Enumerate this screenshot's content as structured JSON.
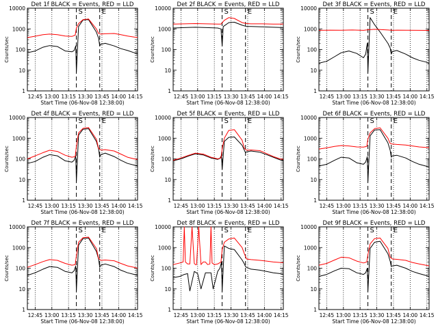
{
  "figure": {
    "xlabel": "Start Time (06-Nov-08 12:38:00)",
    "ylabel": "Counts/sec",
    "xticks": [
      "12:45",
      "13:00",
      "13:15",
      "13:30",
      "13:45",
      "14:00",
      "14:15"
    ],
    "yticks": [
      "1",
      "10",
      "100",
      "1000",
      "10000"
    ],
    "marker_start": "S",
    "marker_end": "E",
    "colors": {
      "events": "#000000",
      "lld": "#ff0000",
      "axes": "#000000",
      "background": "#ffffff"
    }
  },
  "chart_data": [
    {
      "type": "line",
      "title": "Det 1f BLACK = Events, RED = LLD",
      "xlabel": "Start Time (06-Nov-08 12:38:00)",
      "ylabel": "Counts/sec",
      "x_unit": "minutes after 12:38:00",
      "xlim": [
        0,
        99
      ],
      "ylim": [
        1,
        10000
      ],
      "yscale": "log",
      "markers": {
        "S": 44,
        "E": 65
      },
      "series": [
        {
          "color": "#000000",
          "x": [
            0,
            7,
            14,
            20,
            27,
            34,
            40,
            42,
            43.5,
            44,
            46,
            50,
            55,
            62,
            64,
            65,
            66,
            70,
            78,
            84,
            90,
            96,
            99
          ],
          "values": [
            70,
            85,
            130,
            155,
            140,
            85,
            78,
            90,
            150,
            8,
            1300,
            2700,
            2800,
            700,
            350,
            150,
            180,
            200,
            150,
            110,
            90,
            70,
            65
          ]
        },
        {
          "color": "#ff0000",
          "x": [
            0,
            7,
            14,
            20,
            27,
            34,
            40,
            43,
            44,
            46,
            50,
            55,
            62,
            64,
            66,
            70,
            78,
            84,
            90,
            96,
            99
          ],
          "values": [
            380,
            440,
            520,
            560,
            520,
            450,
            430,
            500,
            1100,
            1800,
            2800,
            3000,
            1000,
            600,
            560,
            580,
            600,
            520,
            450,
            400,
            390
          ]
        }
      ]
    },
    {
      "type": "line",
      "title": "Det 2f BLACK = Events, RED = LLD",
      "xlabel": "Start Time (06-Nov-08 12:38:00)",
      "ylabel": "Counts/sec",
      "x_unit": "minutes after 12:38:00",
      "xlim": [
        0,
        99
      ],
      "ylim": [
        1,
        10000
      ],
      "yscale": "log",
      "markers": {
        "S": 44,
        "E": 65
      },
      "series": [
        {
          "color": "#000000",
          "x": [
            0,
            10,
            20,
            30,
            40,
            43,
            44,
            45,
            50,
            55,
            62,
            66,
            70,
            80,
            90,
            99
          ],
          "values": [
            1100,
            1150,
            1200,
            1150,
            1100,
            1000,
            150,
            1300,
            2000,
            2100,
            1500,
            1300,
            1300,
            1250,
            1200,
            1150
          ]
        },
        {
          "color": "#ff0000",
          "x": [
            0,
            10,
            20,
            30,
            40,
            43,
            46,
            50,
            55,
            62,
            66,
            70,
            80,
            90,
            99
          ],
          "values": [
            1700,
            1750,
            1800,
            1750,
            1700,
            1700,
            2600,
            3500,
            3200,
            2000,
            1800,
            1750,
            1750,
            1700,
            1700
          ]
        }
      ]
    },
    {
      "type": "line",
      "title": "Det 3f BLACK = Events, RED = LLD",
      "xlabel": "Start Time (06-Nov-08 12:38:00)",
      "ylabel": "Counts/sec",
      "x_unit": "minutes after 12:38:00",
      "xlim": [
        0,
        99
      ],
      "ylim": [
        1,
        10000
      ],
      "yscale": "log",
      "markers": {
        "S": 44,
        "E": 65
      },
      "series": [
        {
          "color": "#000000",
          "x": [
            0,
            7,
            14,
            20,
            27,
            34,
            40,
            42,
            43.5,
            44,
            46,
            50,
            55,
            62,
            64,
            65,
            66,
            70,
            78,
            84,
            90,
            96,
            99
          ],
          "values": [
            22,
            27,
            45,
            70,
            85,
            65,
            40,
            60,
            200,
            8,
            3500,
            1600,
            700,
            200,
            120,
            60,
            80,
            90,
            60,
            40,
            30,
            25,
            22
          ]
        },
        {
          "color": "#ff0000",
          "x": [
            0,
            10,
            20,
            30,
            40,
            44,
            50,
            55,
            62,
            66,
            70,
            80,
            90,
            99
          ],
          "values": [
            850,
            870,
            860,
            880,
            850,
            900,
            950,
            920,
            880,
            850,
            870,
            860,
            850,
            840
          ]
        }
      ]
    },
    {
      "type": "line",
      "title": "Det 4f BLACK = Events, RED = LLD",
      "xlabel": "Start Time (06-Nov-08 12:38:00)",
      "ylabel": "Counts/sec",
      "x_unit": "minutes after 12:38:00",
      "xlim": [
        0,
        99
      ],
      "ylim": [
        1,
        10000
      ],
      "yscale": "log",
      "markers": {
        "S": 44,
        "E": 65
      },
      "series": [
        {
          "color": "#000000",
          "x": [
            0,
            7,
            14,
            20,
            27,
            34,
            40,
            42,
            43.5,
            44,
            46,
            50,
            55,
            62,
            64,
            65,
            66,
            70,
            78,
            84,
            90,
            96,
            99
          ],
          "values": [
            60,
            75,
            120,
            160,
            140,
            80,
            70,
            85,
            140,
            8,
            1400,
            2700,
            2900,
            700,
            300,
            120,
            160,
            190,
            130,
            85,
            60,
            50,
            45
          ]
        },
        {
          "color": "#ff0000",
          "x": [
            0,
            7,
            14,
            20,
            27,
            34,
            40,
            43,
            44,
            46,
            50,
            55,
            62,
            64,
            66,
            70,
            78,
            84,
            90,
            96,
            99
          ],
          "values": [
            100,
            140,
            200,
            260,
            230,
            150,
            120,
            130,
            400,
            1800,
            3000,
            3300,
            900,
            320,
            270,
            280,
            240,
            170,
            120,
            100,
            95
          ]
        }
      ]
    },
    {
      "type": "line",
      "title": "Det 5f BLACK = Events, RED = LLD",
      "xlabel": "Start Time (06-Nov-08 12:38:00)",
      "ylabel": "Counts/sec",
      "x_unit": "minutes after 12:38:00",
      "xlim": [
        0,
        99
      ],
      "ylim": [
        1,
        10000
      ],
      "yscale": "log",
      "markers": {
        "S": 44,
        "E": 65
      },
      "series": [
        {
          "color": "#000000",
          "x": [
            0,
            7,
            14,
            20,
            27,
            34,
            40,
            42,
            43.5,
            44,
            46,
            50,
            55,
            62,
            64,
            65,
            66,
            70,
            78,
            84,
            90,
            96,
            99
          ],
          "values": [
            80,
            100,
            140,
            175,
            155,
            110,
            95,
            105,
            150,
            30,
            700,
            1100,
            1150,
            450,
            260,
            200,
            220,
            240,
            210,
            160,
            120,
            90,
            85
          ]
        },
        {
          "color": "#ff0000",
          "x": [
            0,
            7,
            14,
            20,
            27,
            34,
            40,
            43,
            44,
            46,
            50,
            55,
            62,
            64,
            66,
            70,
            78,
            84,
            90,
            96,
            99
          ],
          "values": [
            85,
            110,
            150,
            190,
            170,
            120,
            100,
            110,
            300,
            1000,
            2400,
            2600,
            800,
            320,
            260,
            270,
            250,
            180,
            130,
            100,
            95
          ]
        }
      ]
    },
    {
      "type": "line",
      "title": "Det 6f BLACK = Events, RED = LLD",
      "xlabel": "Start Time (06-Nov-08 12:38:00)",
      "ylabel": "Counts/sec",
      "x_unit": "minutes after 12:38:00",
      "xlim": [
        0,
        99
      ],
      "ylim": [
        1,
        10000
      ],
      "yscale": "log",
      "markers": {
        "S": 44,
        "E": 65
      },
      "series": [
        {
          "color": "#000000",
          "x": [
            0,
            7,
            14,
            20,
            27,
            34,
            40,
            42,
            43.5,
            44,
            46,
            50,
            55,
            62,
            64,
            65,
            66,
            70,
            78,
            84,
            90,
            96,
            99
          ],
          "values": [
            45,
            55,
            85,
            120,
            110,
            65,
            55,
            70,
            130,
            8,
            1300,
            2500,
            2600,
            600,
            260,
            120,
            140,
            150,
            110,
            75,
            55,
            45,
            40
          ]
        },
        {
          "color": "#ff0000",
          "x": [
            0,
            7,
            14,
            20,
            27,
            34,
            40,
            43,
            44,
            46,
            50,
            55,
            62,
            64,
            66,
            70,
            78,
            84,
            90,
            96,
            99
          ],
          "values": [
            300,
            340,
            400,
            440,
            420,
            380,
            370,
            400,
            900,
            1800,
            2900,
            3200,
            1000,
            560,
            520,
            500,
            470,
            420,
            380,
            360,
            350
          ]
        }
      ]
    },
    {
      "type": "line",
      "title": "Det 7f BLACK = Events, RED = LLD",
      "xlabel": "Start Time (06-Nov-08 12:38:00)",
      "ylabel": "Counts/sec",
      "x_unit": "minutes after 12:38:00",
      "xlim": [
        0,
        99
      ],
      "ylim": [
        1,
        10000
      ],
      "yscale": "log",
      "markers": {
        "S": 44,
        "E": 65
      },
      "series": [
        {
          "color": "#000000",
          "x": [
            0,
            7,
            14,
            20,
            27,
            34,
            40,
            42,
            43.5,
            44,
            46,
            50,
            55,
            62,
            64,
            65,
            66,
            70,
            78,
            84,
            90,
            96,
            99
          ],
          "values": [
            45,
            60,
            90,
            120,
            110,
            70,
            60,
            75,
            130,
            8,
            1300,
            2700,
            2900,
            650,
            280,
            110,
            140,
            160,
            120,
            80,
            60,
            50,
            45
          ]
        },
        {
          "color": "#ff0000",
          "x": [
            0,
            7,
            14,
            20,
            27,
            34,
            40,
            43,
            44,
            46,
            50,
            55,
            62,
            64,
            66,
            70,
            78,
            84,
            90,
            96,
            99
          ],
          "values": [
            110,
            150,
            210,
            260,
            240,
            170,
            140,
            150,
            400,
            1800,
            3000,
            3200,
            900,
            300,
            240,
            250,
            230,
            170,
            130,
            110,
            100
          ]
        }
      ]
    },
    {
      "type": "line",
      "title": "Det 8f BLACK = Events, RED = LLD",
      "xlabel": "Start Time (06-Nov-08 12:38:00)",
      "ylabel": "Counts/sec",
      "x_unit": "minutes after 12:38:00",
      "xlim": [
        0,
        99
      ],
      "ylim": [
        1,
        10000
      ],
      "yscale": "log",
      "markers": {
        "S": 44,
        "E": 65
      },
      "series": [
        {
          "color": "#000000",
          "x": [
            0,
            6,
            10,
            13,
            15,
            19,
            22,
            25,
            29,
            34,
            36,
            40,
            42,
            43.5,
            44,
            46,
            50,
            55,
            62,
            64,
            65,
            66,
            70,
            78,
            84,
            90,
            96,
            99
          ],
          "values": [
            35,
            40,
            50,
            55,
            8,
            70,
            55,
            10,
            60,
            60,
            10,
            70,
            100,
            200,
            8,
            1200,
            900,
            800,
            250,
            160,
            120,
            110,
            90,
            80,
            70,
            60,
            55,
            50
          ]
        },
        {
          "color": "#ff0000",
          "x": [
            0,
            6,
            9,
            10,
            11,
            13,
            15,
            17,
            19,
            20,
            21,
            23,
            25,
            27,
            29,
            31,
            33,
            34,
            35,
            37,
            40,
            43,
            44,
            46,
            50,
            55,
            62,
            64,
            66,
            70,
            78,
            84,
            90,
            96,
            99
          ],
          "values": [
            150,
            180,
            200,
            10000,
            200,
            160,
            160,
            10000,
            170,
            150,
            150,
            10000,
            150,
            200,
            200,
            150,
            160,
            10000,
            180,
            150,
            160,
            200,
            800,
            1800,
            2600,
            2900,
            1000,
            500,
            280,
            260,
            240,
            220,
            200,
            190,
            185
          ]
        }
      ]
    },
    {
      "type": "line",
      "title": "Det 9f BLACK = Events, RED = LLD",
      "xlabel": "Start Time (06-Nov-08 12:38:00)",
      "ylabel": "Counts/sec",
      "x_unit": "minutes after 12:38:00",
      "xlim": [
        0,
        99
      ],
      "ylim": [
        1,
        10000
      ],
      "yscale": "log",
      "markers": {
        "S": 44,
        "E": 65
      },
      "series": [
        {
          "color": "#000000",
          "x": [
            0,
            7,
            14,
            20,
            27,
            34,
            40,
            42,
            43.5,
            44,
            46,
            50,
            55,
            62,
            64,
            65,
            66,
            70,
            78,
            84,
            90,
            96,
            99
          ],
          "values": [
            40,
            50,
            75,
            100,
            95,
            60,
            50,
            60,
            100,
            8,
            900,
            1800,
            2000,
            500,
            220,
            120,
            130,
            140,
            100,
            70,
            55,
            45,
            40
          ]
        },
        {
          "color": "#ff0000",
          "x": [
            0,
            7,
            14,
            20,
            27,
            34,
            40,
            43,
            44,
            46,
            50,
            55,
            62,
            64,
            66,
            70,
            78,
            84,
            90,
            96,
            99
          ],
          "values": [
            140,
            170,
            250,
            340,
            320,
            220,
            180,
            200,
            450,
            1500,
            2700,
            2900,
            900,
            340,
            280,
            270,
            240,
            190,
            160,
            140,
            130
          ]
        }
      ]
    }
  ]
}
